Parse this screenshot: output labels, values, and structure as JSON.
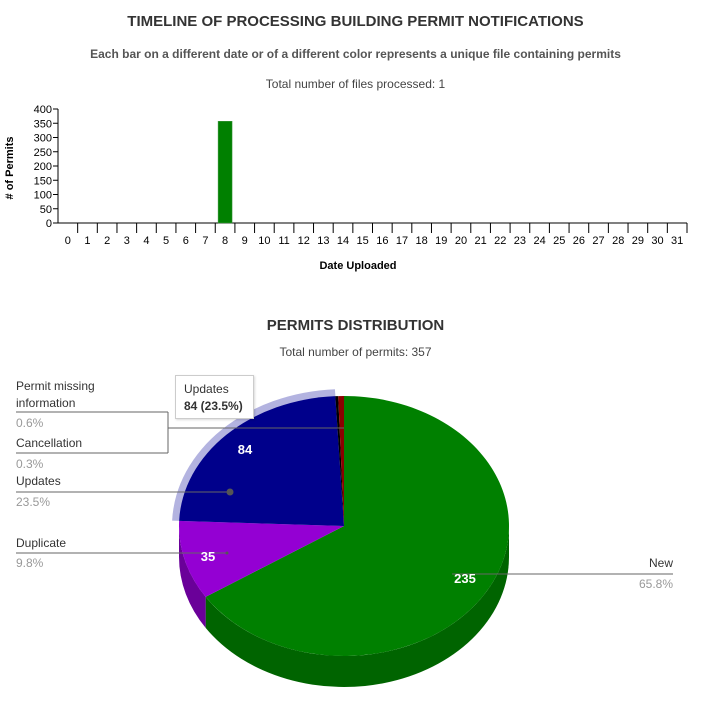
{
  "chart_data": [
    {
      "type": "bar",
      "title": "TIMELINE OF PROCESSING BUILDING PERMIT NOTIFICATIONS",
      "subtitle": "Each bar on a different date or of a different color represents a unique file containing permits",
      "note": "Total number of files processed: 1",
      "xlabel": "Date Uploaded",
      "ylabel": "# of Permits",
      "categories": [
        "0",
        "1",
        "2",
        "3",
        "4",
        "5",
        "6",
        "7",
        "8",
        "9",
        "10",
        "11",
        "12",
        "13",
        "14",
        "15",
        "16",
        "17",
        "18",
        "19",
        "20",
        "21",
        "22",
        "23",
        "24",
        "25",
        "26",
        "27",
        "28",
        "29",
        "30",
        "31"
      ],
      "yticks": [
        0,
        50,
        100,
        150,
        200,
        250,
        300,
        350,
        400
      ],
      "ylim": [
        0,
        400
      ],
      "bars": [
        {
          "x": 8,
          "value": 357,
          "color": "#008000"
        }
      ]
    },
    {
      "type": "pie",
      "title": "PERMITS DISTRIBUTION",
      "note": "Total number of permits: 357",
      "slices": [
        {
          "label": "New",
          "value": 235,
          "percent": "65.8%",
          "color": "#008000",
          "shade": "#006400"
        },
        {
          "label": "Duplicate",
          "value": 35,
          "percent": "9.8%",
          "color": "#9400D3",
          "shade": "#6a0099"
        },
        {
          "label": "Updates",
          "value": 84,
          "percent": "23.5%",
          "color": "#00008B",
          "shade": "#000060"
        },
        {
          "label": "Cancellation",
          "value": 1,
          "percent": "0.3%",
          "color": "#000000",
          "shade": "#000000"
        },
        {
          "label": "Permit missing information",
          "value": 2,
          "percent": "0.6%",
          "color": "#8B0000",
          "shade": "#600000"
        }
      ],
      "tooltip": {
        "label": "Updates",
        "value": "84 (23.5%)"
      }
    }
  ]
}
